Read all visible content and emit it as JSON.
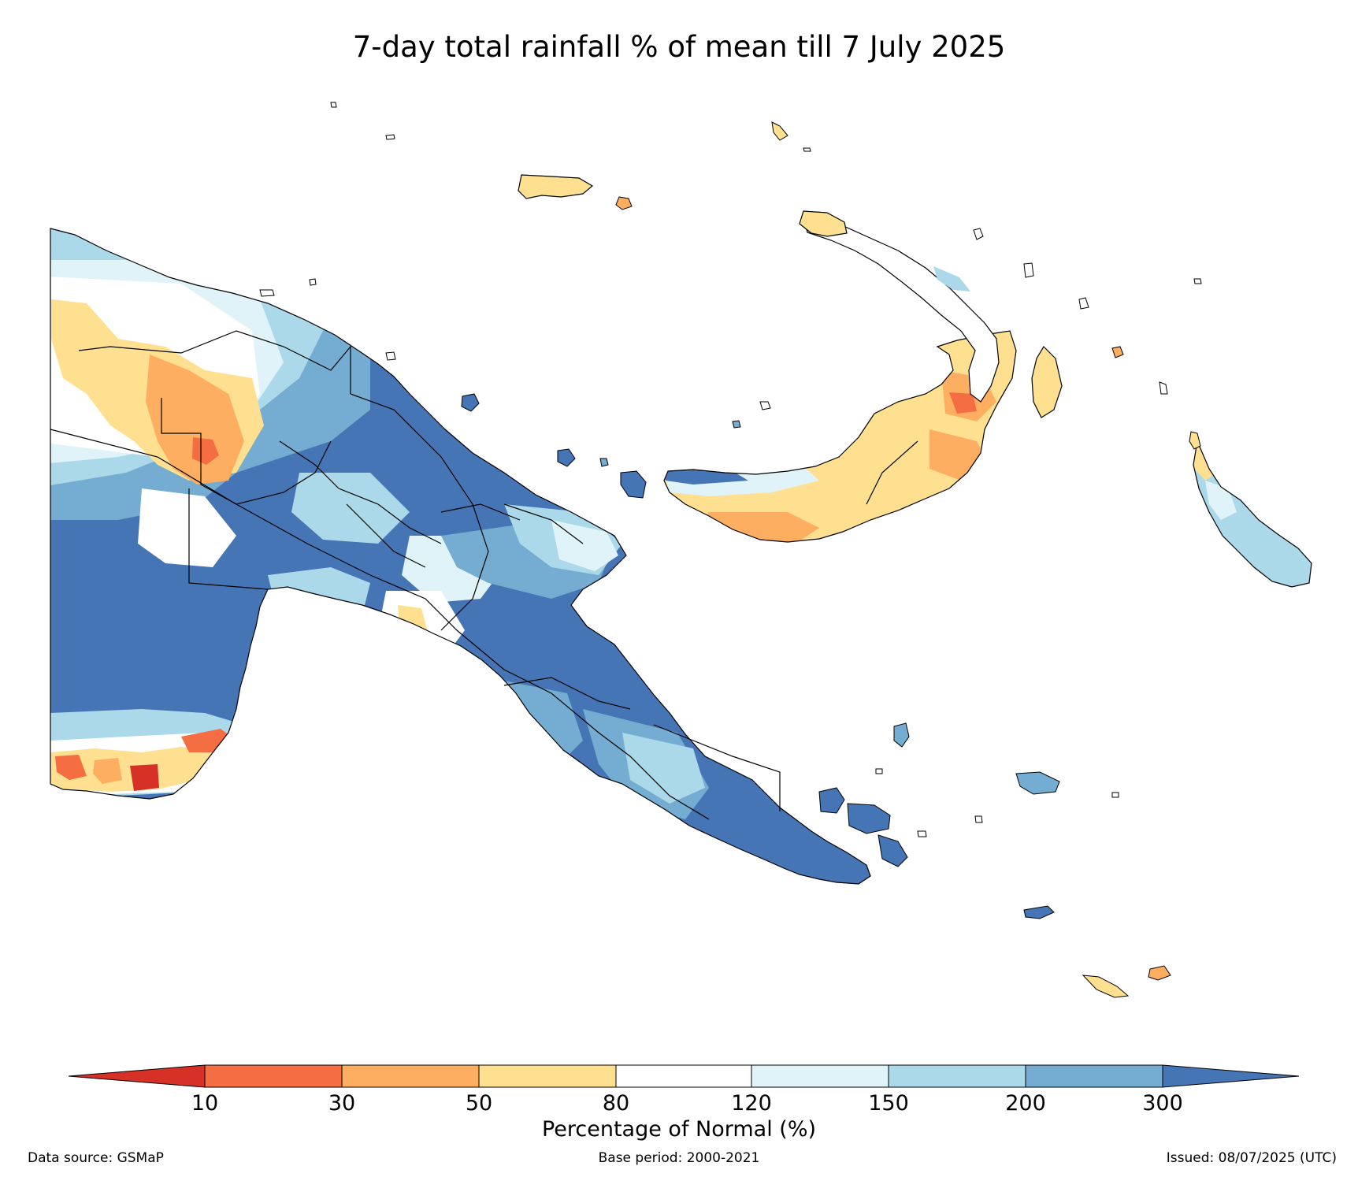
{
  "title": "7-day total rainfall % of mean till 7 July 2025",
  "colorbar": {
    "label": "Percentage of Normal (%)",
    "ticks": [
      "10",
      "30",
      "50",
      "80",
      "120",
      "150",
      "200",
      "300"
    ],
    "colors": {
      "lt10": "#d73027",
      "10-30": "#f46d43",
      "30-50": "#fdae61",
      "50-80": "#fee090",
      "80-120": "#ffffff",
      "120-150": "#e0f3f8",
      "150-200": "#abd9e9",
      "200-300": "#74add1",
      "gt300": "#4575b4"
    }
  },
  "footer": {
    "source": "Data source: GSMaP",
    "base_period": "Base period: 2000-2021",
    "issued": "Issued: 08/07/2025 (UTC)"
  }
}
